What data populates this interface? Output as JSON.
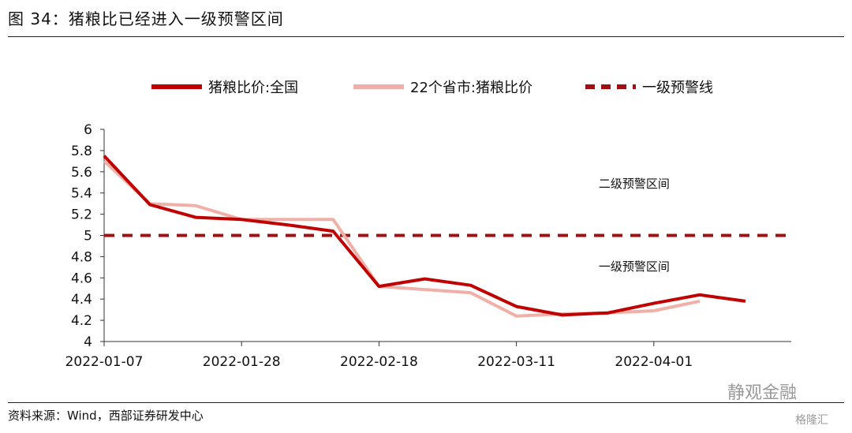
{
  "figure_title": "图 34：猪粮比已经进入一级预警区间",
  "source_note": "资料来源：Wind，西部证券研发中心",
  "watermark": "静观金融",
  "watermark_small": "格隆汇",
  "chart_data": {
    "type": "line",
    "title": "",
    "xlabel": "",
    "ylabel": "",
    "ylim": [
      4,
      6
    ],
    "xlim": [
      "2022-01-07",
      "2022-04-22"
    ],
    "yticks": [
      "4",
      "4.2",
      "4.4",
      "4.6",
      "4.8",
      "5",
      "5.2",
      "5.4",
      "5.6",
      "5.8",
      "6"
    ],
    "xticks": [
      "2022-01-07",
      "2022-01-28",
      "2022-02-18",
      "2022-03-11",
      "2022-04-01"
    ],
    "legend_position": "top",
    "grid": false,
    "colors": {
      "national": "#c00000",
      "provinces": "#f0b0a8",
      "warning": "#a01010"
    },
    "series": [
      {
        "name": "猪粮比价:全国",
        "style": "solid",
        "x": [
          "2022-01-07",
          "2022-01-14",
          "2022-01-21",
          "2022-01-28",
          "2022-02-04",
          "2022-02-11",
          "2022-02-18",
          "2022-02-25",
          "2022-03-04",
          "2022-03-11",
          "2022-03-18",
          "2022-03-25",
          "2022-04-01",
          "2022-04-08",
          "2022-04-15"
        ],
        "values": [
          5.75,
          5.29,
          5.17,
          5.15,
          5.1,
          5.04,
          4.52,
          4.59,
          4.53,
          4.33,
          4.25,
          4.27,
          4.36,
          4.44,
          4.38
        ]
      },
      {
        "name": "22个省市:猪粮比价",
        "style": "solid",
        "x": [
          "2022-01-07",
          "2022-01-14",
          "2022-01-21",
          "2022-01-28",
          "2022-02-04",
          "2022-02-11",
          "2022-02-18",
          "2022-02-25",
          "2022-03-04",
          "2022-03-11",
          "2022-03-18",
          "2022-03-25",
          "2022-04-01",
          "2022-04-08"
        ],
        "values": [
          5.7,
          5.3,
          5.28,
          5.15,
          5.15,
          5.15,
          4.52,
          4.49,
          4.46,
          4.24,
          4.26,
          4.27,
          4.29,
          4.38
        ]
      },
      {
        "name": "一级预警线",
        "style": "dashed",
        "x": [
          "2022-01-07",
          "2022-04-22"
        ],
        "values": [
          5.0,
          5.0
        ]
      }
    ],
    "annotations": [
      {
        "text": "二级预警区间",
        "x": "2022-03-29",
        "y": 5.45
      },
      {
        "text": "一级预警区间",
        "x": "2022-03-29",
        "y": 4.67
      }
    ]
  }
}
